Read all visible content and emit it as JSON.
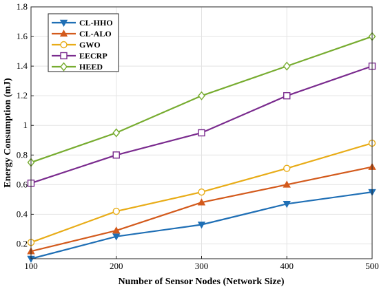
{
  "chart_data": {
    "type": "line",
    "xlabel": "Number of Sensor Nodes (Network Size)",
    "ylabel": "Energy Consumption (mJ)",
    "x": [
      100,
      200,
      300,
      400,
      500
    ],
    "xlim": [
      100,
      500
    ],
    "ylim": [
      0.1,
      1.8
    ],
    "xticks": [
      100,
      200,
      300,
      400,
      500
    ],
    "yticks": [
      0.2,
      0.4,
      0.6,
      0.8,
      1,
      1.2,
      1.4,
      1.6,
      1.8
    ],
    "grid": true,
    "legend_position": "top-left",
    "series": [
      {
        "name": "CL-HHO",
        "color": "#1f6fb5",
        "marker": "triangle-down",
        "values": [
          0.1,
          0.25,
          0.33,
          0.47,
          0.55
        ]
      },
      {
        "name": "CL-ALO",
        "color": "#d35a1c",
        "marker": "triangle-up",
        "values": [
          0.15,
          0.29,
          0.48,
          0.6,
          0.72
        ]
      },
      {
        "name": "GWO",
        "color": "#e8ac17",
        "marker": "circle",
        "values": [
          0.21,
          0.42,
          0.55,
          0.71,
          0.88
        ]
      },
      {
        "name": "EECRP",
        "color": "#7a2b8e",
        "marker": "square",
        "values": [
          0.61,
          0.8,
          0.95,
          1.2,
          1.4
        ]
      },
      {
        "name": "HEED",
        "color": "#77ac30",
        "marker": "diamond",
        "values": [
          0.75,
          0.95,
          1.2,
          1.4,
          1.6
        ]
      }
    ]
  }
}
